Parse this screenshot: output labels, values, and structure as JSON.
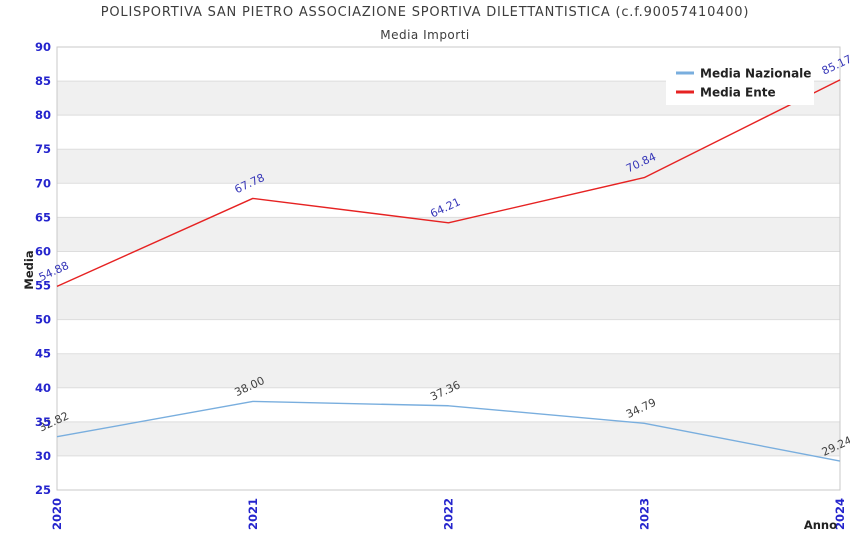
{
  "header": {
    "title": "POLISPORTIVA SAN PIETRO ASSOCIAZIONE SPORTIVA DILETTANTISTICA (c.f.90057410400)",
    "subtitle": "Media Importi"
  },
  "chart_data": {
    "type": "line",
    "x": [
      "2020",
      "2021",
      "2022",
      "2023",
      "2024"
    ],
    "xlabel": "Anno",
    "ylabel": "Media",
    "ylim": [
      25,
      90
    ],
    "ytick_step": 5,
    "grid": true,
    "band_fill": true,
    "legend_position": "top-right",
    "legend": [
      "Media Nazionale",
      "Media Ente"
    ],
    "series": [
      {
        "name": "Media Nazionale",
        "color": "#79aede",
        "label_color": "#3f3f3f",
        "values": [
          32.82,
          38.0,
          37.36,
          34.79,
          29.24
        ],
        "labels": [
          "32.82",
          "38.00",
          "37.36",
          "34.79",
          "29.24"
        ]
      },
      {
        "name": "Media Ente",
        "color": "#e62222",
        "label_color": "#3737b8",
        "values": [
          54.88,
          67.78,
          64.21,
          70.84,
          85.17
        ],
        "labels": [
          "54.88",
          "67.78",
          "64.21",
          "70.84",
          "85.17"
        ]
      }
    ]
  },
  "style": {
    "tick_label_color": "#2525cd",
    "band_color": "#f0f0f0",
    "grid_color": "#dddddd",
    "border_color": "#c9c9c9",
    "title_color": "#3d3d3d",
    "axis_title_color": "#222222",
    "legend_text_color": "#222222",
    "legend_background": "#ffffff"
  }
}
